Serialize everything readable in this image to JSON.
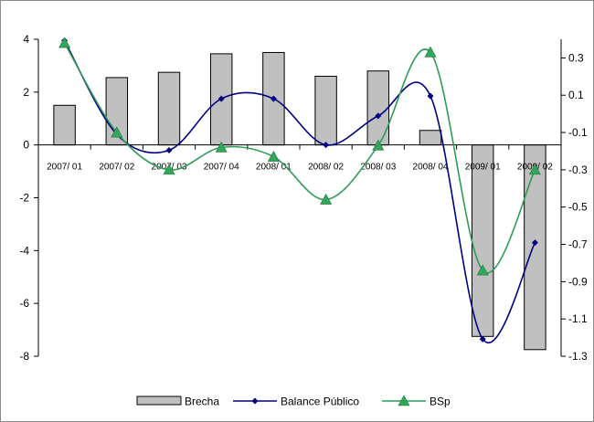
{
  "chart_data": {
    "type": "bar",
    "categories": [
      "2007/ 01",
      "2007/ 02",
      "2007/ 03",
      "2007/ 04",
      "2008/ 01",
      "2008/ 02",
      "2008/ 03",
      "2008/ 04",
      "2009/ 01",
      "2009/ 02"
    ],
    "y_left_ticks": [
      "4",
      "2",
      "0",
      "-2",
      "-4",
      "-6",
      "-8"
    ],
    "y_right_ticks": [
      "0.3",
      "0.1",
      "-0.1",
      "-0.3",
      "-0.5",
      "-0.7",
      "-0.9",
      "-1.1",
      "-1.3"
    ],
    "ylim_left": [
      -8,
      4
    ],
    "ylim_right": [
      -1.3,
      0.4
    ],
    "grid": false,
    "legend_position": "bottom",
    "series": [
      {
        "name": "Brecha",
        "type": "bar",
        "axis": "left",
        "color": "#c0c0c0",
        "values": [
          1.5,
          2.55,
          2.75,
          3.45,
          3.5,
          2.6,
          2.8,
          0.55,
          -7.25,
          -7.75
        ]
      },
      {
        "name": "Balance Público",
        "type": "line",
        "axis": "left",
        "color": "#000080",
        "marker": "diamond",
        "values": [
          3.95,
          0.4,
          -0.2,
          1.75,
          1.75,
          0.0,
          1.1,
          1.85,
          -7.35,
          -3.7
        ]
      },
      {
        "name": "BSp",
        "type": "line",
        "axis": "right",
        "color": "#2e9b57",
        "marker_color": "#33a65a",
        "marker": "triangle",
        "values": [
          0.38,
          -0.1,
          -0.3,
          -0.18,
          -0.23,
          -0.46,
          -0.17,
          0.33,
          -0.84,
          -0.3
        ]
      }
    ]
  }
}
